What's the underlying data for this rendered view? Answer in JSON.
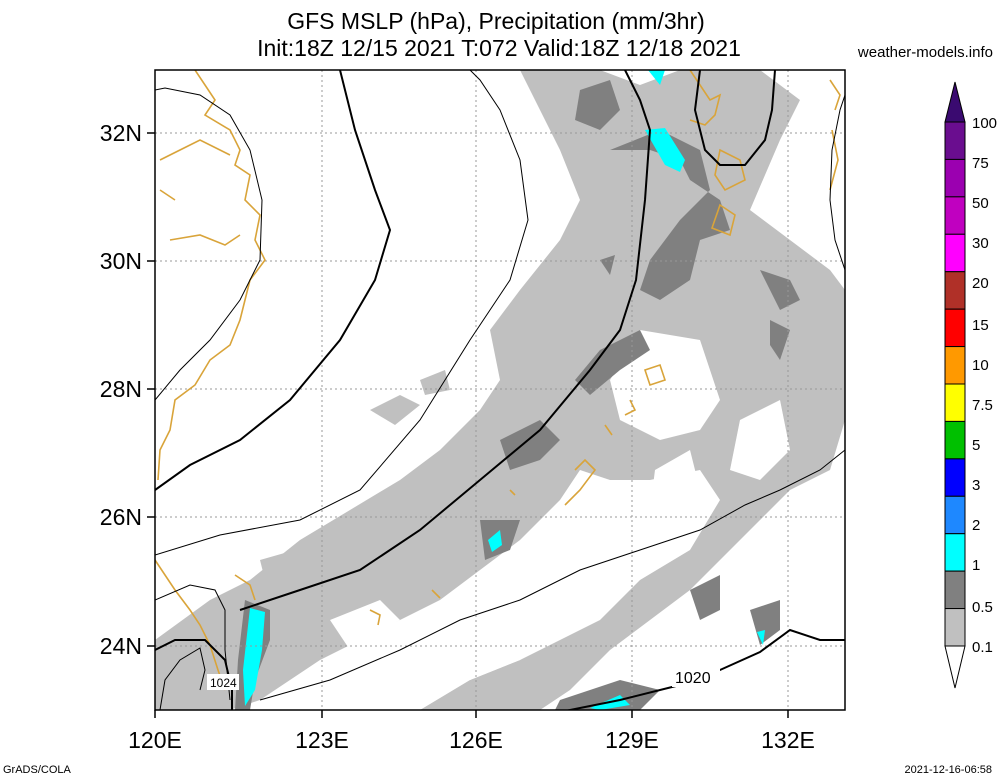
{
  "header": {
    "title_line1": "GFS MSLP (hPa), Precipitation (mm/3hr)",
    "title_line2": "Init:18Z 12/15 2021 T:072 Valid:18Z 12/18 2021",
    "site": "weather-models.info"
  },
  "map": {
    "lon_labels": [
      "120E",
      "123E",
      "126E",
      "129E",
      "132E"
    ],
    "lat_labels": [
      "32N",
      "30N",
      "28N",
      "26N",
      "24N"
    ],
    "isobar_labels": [
      "1024",
      "1020"
    ],
    "colors": {
      "coastline": "#d9a43a",
      "isobar": "#000000",
      "grid": "#999999",
      "precip_light": "#c0c0c0",
      "precip_mid": "#808080",
      "precip_heavy": "#00ffff"
    }
  },
  "legend": {
    "levels": [
      "100",
      "75",
      "50",
      "30",
      "20",
      "15",
      "10",
      "7.5",
      "5",
      "3",
      "2",
      "1",
      "0.5",
      "0.1"
    ],
    "colors": [
      "#6a0d8f",
      "#9b00b0",
      "#c000c0",
      "#ff00ff",
      "#b03028",
      "#ff0000",
      "#ff9900",
      "#ffff00",
      "#00c000",
      "#0000ff",
      "#1e88ff",
      "#00ffff",
      "#808080",
      "#c0c0c0"
    ],
    "top_arrow_color": "#3a0a70"
  },
  "footer": {
    "left": "GrADS/COLA",
    "right": "2021-12-16-06:58"
  }
}
